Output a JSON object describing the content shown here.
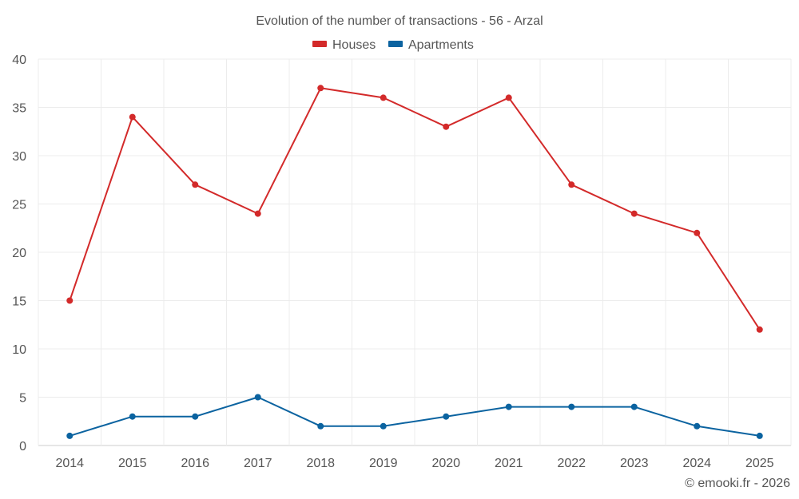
{
  "chart_data": {
    "type": "line",
    "title": "Evolution of the number of transactions - 56 - Arzal",
    "x": [
      "2014",
      "2015",
      "2016",
      "2017",
      "2018",
      "2019",
      "2020",
      "2021",
      "2022",
      "2023",
      "2024",
      "2025"
    ],
    "series": [
      {
        "name": "Houses",
        "color": "#d32a2a",
        "values": [
          15,
          34,
          27,
          24,
          37,
          36,
          33,
          36,
          27,
          24,
          22,
          12
        ]
      },
      {
        "name": "Apartments",
        "color": "#0b63a0",
        "values": [
          1,
          3,
          3,
          5,
          2,
          2,
          3,
          4,
          4,
          4,
          2,
          1
        ]
      }
    ],
    "ylim": [
      0,
      40
    ],
    "yticks": [
      0,
      5,
      10,
      15,
      20,
      25,
      30,
      35,
      40
    ],
    "xlabel": "",
    "ylabel": "",
    "grid": true,
    "legend": "top-center"
  },
  "footer": {
    "copyright": "© emooki.fr - 2026"
  }
}
